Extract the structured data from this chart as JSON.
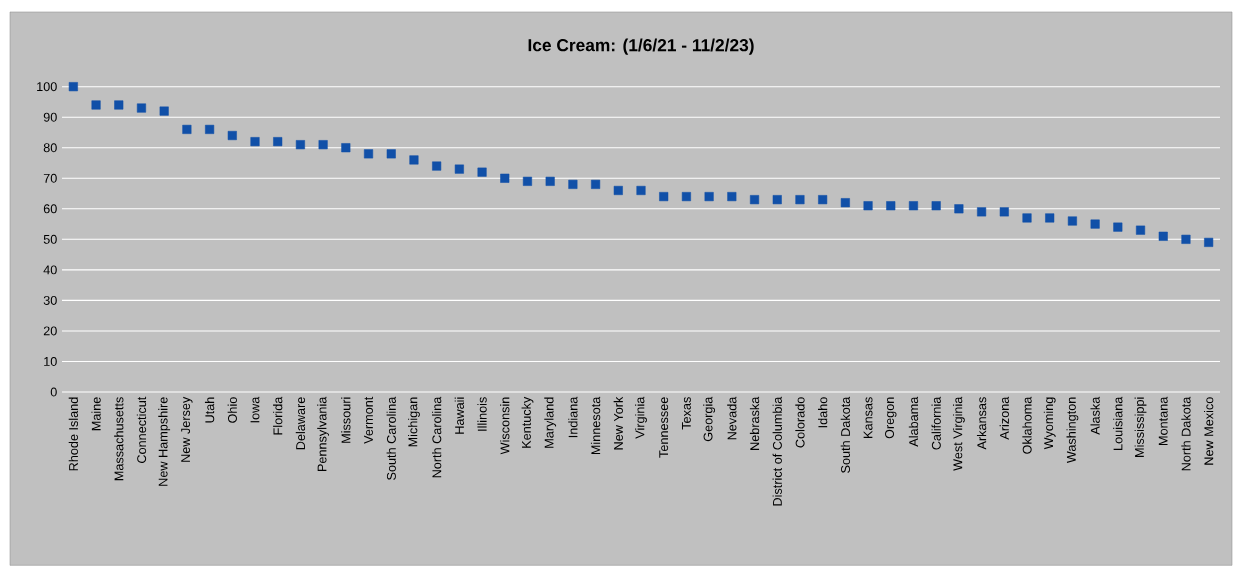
{
  "chart_data": {
    "type": "scatter",
    "title": "Ice Cream: (1/6/21 - 11/2/23)",
    "categories": [
      "Rhode Island",
      "Maine",
      "Massachusetts",
      "Connecticut",
      "New Hampshire",
      "New Jersey",
      "Utah",
      "Ohio",
      "Iowa",
      "Florida",
      "Delaware",
      "Pennsylvania",
      "Missouri",
      "Vermont",
      "South Carolina",
      "Michigan",
      "North Carolina",
      "Hawaii",
      "Illinois",
      "Wisconsin",
      "Kentucky",
      "Maryland",
      "Indiana",
      "Minnesota",
      "New York",
      "Virginia",
      "Tennessee",
      "Texas",
      "Georgia",
      "Nevada",
      "Nebraska",
      "District of Columbia",
      "Colorado",
      "Idaho",
      "South Dakota",
      "Kansas",
      "Oregon",
      "Alabama",
      "California",
      "West Virginia",
      "Arkansas",
      "Arizona",
      "Oklahoma",
      "Wyoming",
      "Washington",
      "Alaska",
      "Louisiana",
      "Mississippi",
      "Montana",
      "North Dakota",
      "New Mexico"
    ],
    "series": [
      {
        "color": "#1150a8",
        "values": [
          100,
          94,
          94,
          93,
          92,
          86,
          86,
          84,
          82,
          82,
          81,
          81,
          80,
          78,
          78,
          76,
          74,
          73,
          72,
          70,
          69,
          69,
          68,
          68,
          66,
          66,
          64,
          64,
          64,
          64,
          63,
          63,
          63,
          63,
          62,
          61,
          61,
          61,
          61,
          60,
          59,
          59,
          57,
          57,
          56,
          55,
          54,
          53,
          51,
          50,
          49
        ]
      }
    ],
    "ylim": [
      0,
      100
    ],
    "yticks": [
      0,
      10,
      20,
      30,
      40,
      50,
      60,
      70,
      80,
      90,
      100
    ],
    "grid": "y",
    "marker": "square"
  }
}
